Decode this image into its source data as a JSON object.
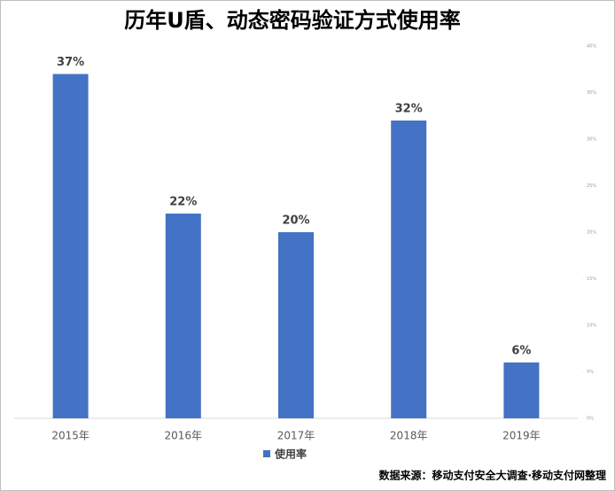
{
  "chart_data": {
    "type": "bar",
    "title": "历年U盾、动态密码验证方式使用率",
    "categories": [
      "2015年",
      "2016年",
      "2017年",
      "2018年",
      "2019年"
    ],
    "series": [
      {
        "name": "使用率",
        "color": "#4472c4",
        "values": [
          37,
          22,
          20,
          32,
          6
        ],
        "value_labels": [
          "37%",
          "22%",
          "20%",
          "32%",
          "6%"
        ]
      }
    ],
    "ylim": [
      0,
      40
    ],
    "yticks": [
      {
        "value": 0,
        "label": "0%"
      },
      {
        "value": 5,
        "label": "5%"
      },
      {
        "value": 10,
        "label": "10%"
      },
      {
        "value": 15,
        "label": "15%"
      },
      {
        "value": 20,
        "label": "20%"
      },
      {
        "value": 25,
        "label": "25%"
      },
      {
        "value": 30,
        "label": "30%"
      },
      {
        "value": 35,
        "label": "35%"
      },
      {
        "value": 40,
        "label": "40%"
      }
    ],
    "source": "数据来源：移动支付安全大调查·移动支付网整理"
  }
}
